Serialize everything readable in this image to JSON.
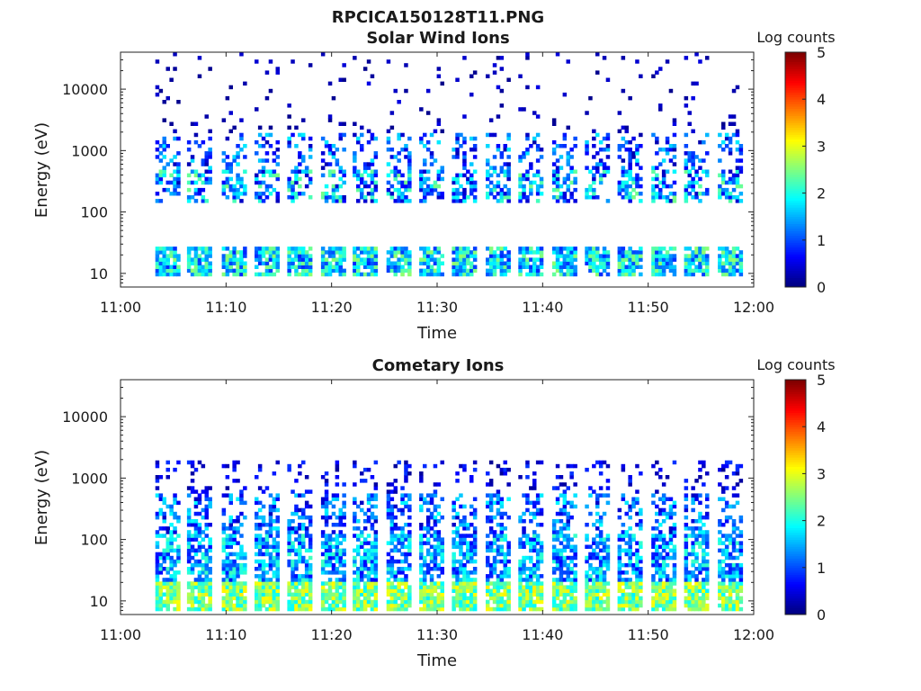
{
  "figure_title": "RPCICA150128T11.PNG",
  "chart_data": [
    {
      "type": "heatmap",
      "title": "Solar Wind Ions",
      "xlabel": "Time",
      "ylabel": "Energy (eV)",
      "x_ticks": [
        "11:00",
        "11:10",
        "11:20",
        "11:30",
        "11:40",
        "11:50",
        "12:00"
      ],
      "x_range": [
        "11:00",
        "12:00"
      ],
      "y_scale": "log",
      "y_ticks": [
        "10",
        "100",
        "1000",
        "10000"
      ],
      "y_range": [
        6,
        40000
      ],
      "colorbar": {
        "label": "Log counts",
        "range": [
          0,
          5
        ],
        "ticks": [
          "0",
          "1",
          "2",
          "3",
          "4",
          "5"
        ],
        "colormap": "jet"
      },
      "scan_starts_min": [
        3.3,
        6.3,
        9.6,
        12.7,
        15.8,
        19.0,
        22.0,
        25.2,
        28.3,
        31.4,
        34.6,
        37.7,
        40.9,
        44.0,
        47.1,
        50.3,
        53.4,
        56.6
      ],
      "bands": [
        {
          "emin": 9,
          "emax": 28,
          "level_min": 0.8,
          "level_max": 2.6,
          "density": 0.85
        },
        {
          "emin": 150,
          "emax": 500,
          "level_min": 0.3,
          "level_max": 2.5,
          "density": 0.55
        },
        {
          "emin": 500,
          "emax": 2000,
          "level_min": 0.2,
          "level_max": 1.8,
          "density": 0.3
        },
        {
          "emin": 2000,
          "emax": 40000,
          "level_min": 0.05,
          "level_max": 0.5,
          "density": 0.06
        }
      ],
      "grid": false
    },
    {
      "type": "heatmap",
      "title": "Cometary Ions",
      "xlabel": "Time",
      "ylabel": "Energy (eV)",
      "x_ticks": [
        "11:00",
        "11:10",
        "11:20",
        "11:30",
        "11:40",
        "11:50",
        "12:00"
      ],
      "x_range": [
        "11:00",
        "12:00"
      ],
      "y_scale": "log",
      "y_ticks": [
        "10",
        "100",
        "1000",
        "10000"
      ],
      "y_range": [
        6,
        40000
      ],
      "colorbar": {
        "label": "Log counts",
        "range": [
          0,
          5
        ],
        "ticks": [
          "0",
          "1",
          "2",
          "3",
          "4",
          "5"
        ],
        "colormap": "jet"
      },
      "scan_starts_min": [
        3.3,
        6.3,
        9.6,
        12.7,
        15.8,
        19.0,
        22.0,
        25.2,
        28.3,
        31.4,
        34.6,
        37.7,
        40.9,
        44.0,
        47.1,
        50.3,
        53.4,
        56.6
      ],
      "bands": [
        {
          "emin": 7,
          "emax": 22,
          "level_min": 1.8,
          "level_max": 3.2,
          "density": 0.9
        },
        {
          "emin": 22,
          "emax": 120,
          "level_min": 0.6,
          "level_max": 2.2,
          "density": 0.7
        },
        {
          "emin": 120,
          "emax": 600,
          "level_min": 0.3,
          "level_max": 1.9,
          "density": 0.45
        },
        {
          "emin": 600,
          "emax": 2000,
          "level_min": 0.1,
          "level_max": 0.9,
          "density": 0.18
        }
      ],
      "grid": false
    }
  ]
}
